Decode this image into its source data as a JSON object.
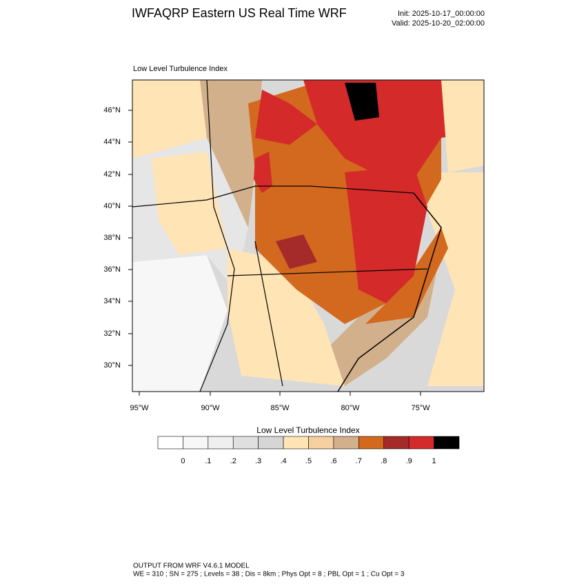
{
  "header": {
    "title": "IWFAQRP Eastern US Real Time WRF",
    "init": "Init: 2025-10-17_00:00:00",
    "valid": "Valid: 2025-10-20_02:00:00"
  },
  "map": {
    "subtitle": "Low Level Turbulence Index",
    "lat_labels": [
      "46°N",
      "44°N",
      "42°N",
      "40°N",
      "38°N",
      "36°N",
      "34°N",
      "32°N",
      "30°N"
    ],
    "lon_labels": [
      "95°W",
      "90°W",
      "85°W",
      "80°W",
      "75°W"
    ]
  },
  "colorbar": {
    "title": "Low Level Turbulence Index",
    "colors": [
      "#ffffff",
      "#f7f7f7",
      "#efefef",
      "#e0e0e0",
      "#d6d6d6",
      "#ffe4b5",
      "#f5d0a0",
      "#d2b08c",
      "#d2691e",
      "#a52a2a",
      "#d42a2a",
      "#000000"
    ],
    "labels": [
      "0",
      ".1",
      ".2",
      ".3",
      ".4",
      ".5",
      ".6",
      ".7",
      ".8",
      ".9",
      "1"
    ]
  },
  "footer": {
    "line1": "OUTPUT FROM WRF V4.6.1 MODEL",
    "line2": "WE = 310 ; SN = 275 ; Levels = 38 ; Dis = 8km ; Phys Opt = 8 ; PBL Opt = 1 ; Cu Opt = 3"
  }
}
